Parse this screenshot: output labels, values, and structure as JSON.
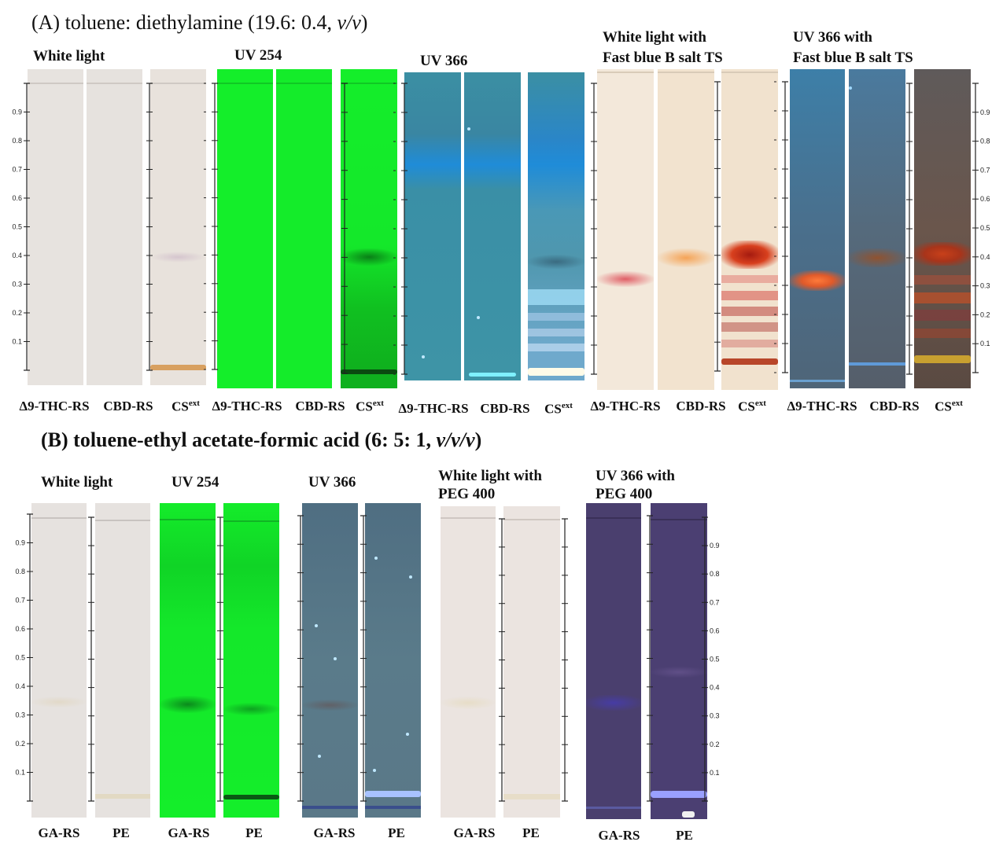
{
  "sectionA": {
    "prefix": "(A) toluene: diethylamine (19.6: 0.4,",
    "ratio_unit": "v/v",
    "suffix": ")",
    "panels": {
      "white": {
        "label": "White light"
      },
      "uv254": {
        "label": "UV 254"
      },
      "uv366": {
        "label": "UV 366"
      },
      "fbb_white": {
        "label_line1": "White light with",
        "label_line2": "Fast blue B salt TS"
      },
      "fbb_uv366": {
        "label_line1": "UV 366 with",
        "label_line2": "Fast blue B salt TS"
      }
    },
    "lane_labels": {
      "thc": "Δ9-THC-RS",
      "cbd": "CBD-RS",
      "cs": "CS",
      "cs_sup": "ext"
    }
  },
  "sectionB": {
    "prefix": "(B) toluene-ethyl acetate-formic acid (6: 5: 1,",
    "ratio_unit": "v/v/v",
    "suffix": ")",
    "panels": {
      "white": {
        "label": "White light"
      },
      "uv254": {
        "label": "UV 254"
      },
      "uv366": {
        "label": "UV 366"
      },
      "peg_white": {
        "label_line1": "White light with",
        "label_line2": "PEG 400"
      },
      "peg_uv366": {
        "label_line1": "UV 366 with",
        "label_line2": "PEG 400"
      }
    },
    "lane_labels": {
      "ga": "GA-RS",
      "pe": "PE"
    }
  },
  "rf_ticks": [
    "0.1",
    "0.2",
    "0.3",
    "0.4",
    "0.5",
    "0.6",
    "0.7",
    "0.8",
    "0.9"
  ],
  "colors": {
    "white_plate": "#e7e3df",
    "uv254_plate": "#14ee2a",
    "uv366_a_plate": "#3e94a6",
    "fbb_white_plate": "#f2e6d8",
    "fbb_uv366_plate": "#4f6a7c",
    "uv366_b_plate": "#5a7b8a",
    "peg_uv366_plate": "#4a3f6e"
  }
}
